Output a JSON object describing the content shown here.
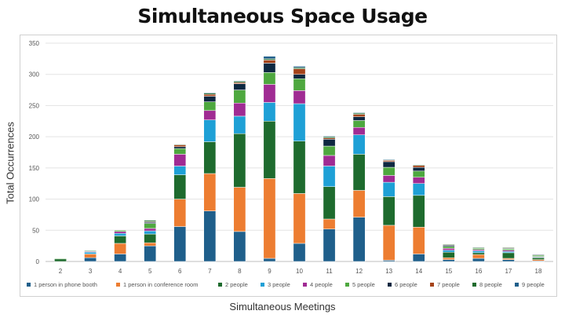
{
  "chart_data": {
    "type": "bar",
    "stacked": true,
    "title": "Simultaneous Space Usage",
    "xlabel": "Simultaneous Meetings",
    "ylabel": "Total Occurrences",
    "ylim": [
      0,
      350
    ],
    "yticks": [
      0,
      50,
      100,
      150,
      200,
      250,
      300,
      350
    ],
    "grid": true,
    "legend": "bottom",
    "categories": [
      "2",
      "3",
      "4",
      "5",
      "6",
      "7",
      "8",
      "9",
      "10",
      "11",
      "12",
      "13",
      "14",
      "15",
      "16",
      "17",
      "18"
    ],
    "series": [
      {
        "name": "1 person in phone booth",
        "color": "#1f5f8b",
        "values": [
          0,
          6,
          12,
          25,
          56,
          81,
          48,
          5,
          29,
          52,
          71,
          2,
          12,
          3,
          5,
          3,
          1
        ]
      },
      {
        "name": "1 person in conference room",
        "color": "#ed7d31",
        "values": [
          0,
          6,
          17,
          5,
          44,
          60,
          71,
          128,
          80,
          16,
          43,
          56,
          43,
          3,
          6,
          2,
          2
        ]
      },
      {
        "name": "2 people",
        "color": "#1e6b2e",
        "values": [
          4,
          0,
          12,
          14,
          39,
          51,
          86,
          92,
          84,
          52,
          58,
          46,
          51,
          9,
          3,
          9,
          3
        ]
      },
      {
        "name": "3 people",
        "color": "#1ea0d6",
        "values": [
          0,
          3,
          4,
          5,
          14,
          35,
          28,
          30,
          60,
          33,
          31,
          23,
          19,
          3,
          3,
          2,
          1
        ]
      },
      {
        "name": "4 people",
        "color": "#a02b93",
        "values": [
          0,
          1,
          3,
          4,
          19,
          15,
          21,
          29,
          21,
          17,
          12,
          11,
          10,
          3,
          2,
          2,
          1
        ]
      },
      {
        "name": "5 people",
        "color": "#4ea83f",
        "values": [
          1,
          1,
          2,
          8,
          9,
          14,
          21,
          19,
          19,
          15,
          11,
          13,
          10,
          3,
          2,
          2,
          2
        ]
      },
      {
        "name": "6 people",
        "color": "#0e2841",
        "values": [
          0,
          0,
          0,
          2,
          3,
          9,
          10,
          15,
          7,
          11,
          6,
          9,
          6,
          2,
          1,
          1,
          1
        ]
      },
      {
        "name": "7 people",
        "color": "#a5441b",
        "values": [
          0,
          0,
          0,
          1,
          3,
          3,
          2,
          5,
          9,
          2,
          4,
          2,
          3,
          1,
          0,
          1,
          0
        ]
      },
      {
        "name": "8 people",
        "color": "#1e6b2e",
        "values": [
          0,
          1,
          0,
          2,
          1,
          2,
          2,
          2,
          2,
          2,
          2,
          1,
          1,
          1,
          1,
          1,
          0
        ]
      },
      {
        "name": "9 people",
        "color": "#1f5f8b",
        "values": [
          0,
          0,
          0,
          0,
          0,
          1,
          1,
          4,
          2,
          1,
          1,
          1,
          0,
          0,
          0,
          0,
          0
        ]
      }
    ]
  }
}
